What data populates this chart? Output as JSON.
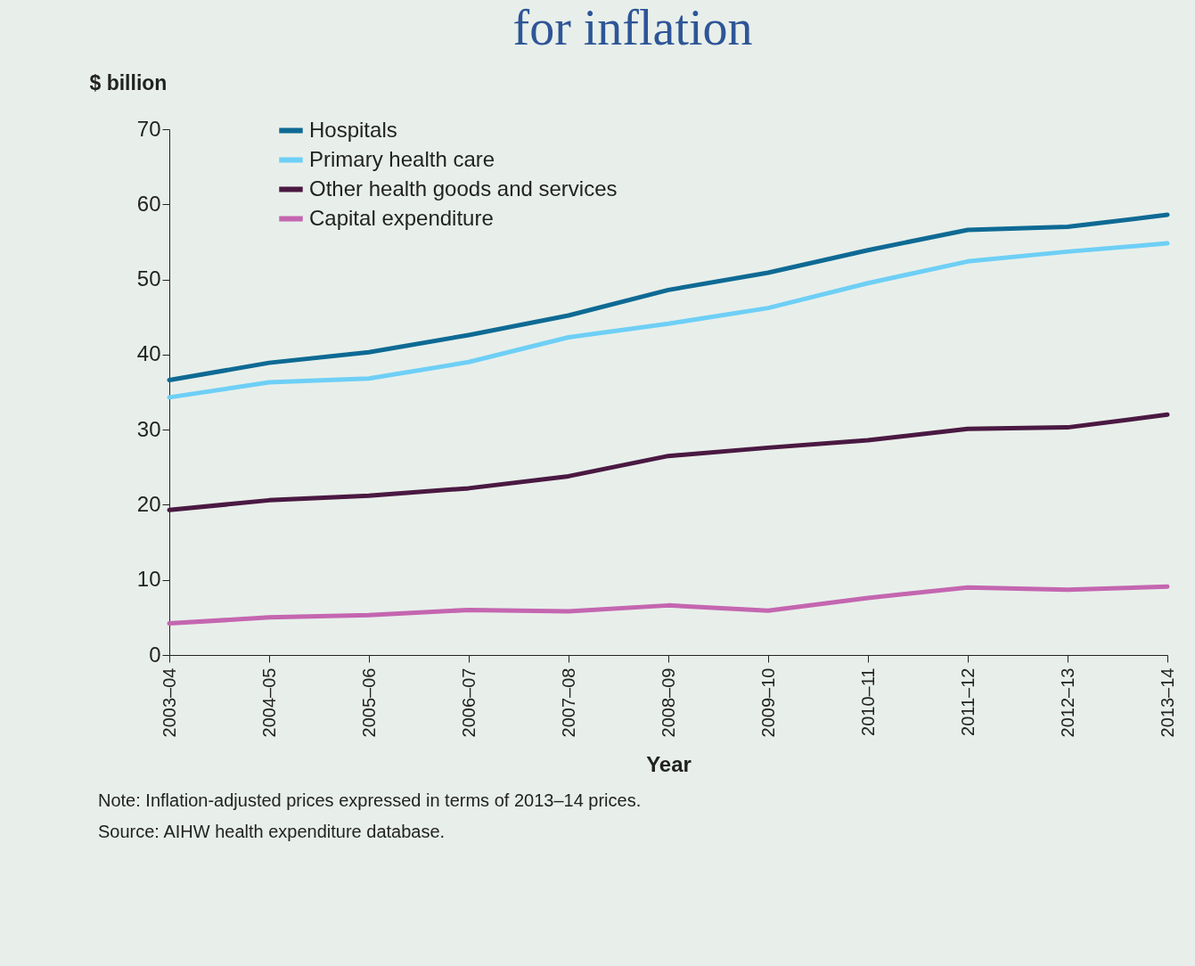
{
  "chart_data": {
    "type": "line",
    "title": "for inflation",
    "ylabel": "$ billion",
    "xlabel": "Year",
    "categories": [
      "2003–04",
      "2004–05",
      "2005–06",
      "2006–07",
      "2007–08",
      "2008–09",
      "2009–10",
      "2010–11",
      "2011–12",
      "2012–13",
      "2013–14"
    ],
    "series": [
      {
        "name": "Hospitals",
        "color": "#0e6a94",
        "values": [
          36.6,
          38.9,
          40.3,
          42.6,
          45.2,
          48.6,
          50.9,
          53.9,
          56.6,
          57.0,
          58.6
        ]
      },
      {
        "name": "Primary health care",
        "color": "#6ecff6",
        "values": [
          34.3,
          36.3,
          36.8,
          39.0,
          42.3,
          44.1,
          46.2,
          49.5,
          52.4,
          53.7,
          54.8
        ]
      },
      {
        "name": "Other health goods and services",
        "color": "#4a1942",
        "values": [
          19.3,
          20.6,
          21.2,
          22.2,
          23.8,
          26.5,
          27.6,
          28.6,
          30.1,
          30.3,
          32.0
        ]
      },
      {
        "name": "Capital expenditure",
        "color": "#c466b0",
        "values": [
          4.2,
          5.0,
          5.3,
          6.0,
          5.8,
          6.6,
          5.9,
          7.6,
          9.0,
          8.7,
          9.1
        ]
      }
    ],
    "ylim": [
      0,
      70
    ],
    "yticks": [
      0,
      10,
      20,
      30,
      40,
      50,
      60,
      70
    ],
    "grid": false,
    "legend": "top left",
    "line_style": "solid",
    "annotations": [
      "Note: Inflation-adjusted prices expressed in terms of 2013–14 prices.",
      "Source: AIHW health expenditure database."
    ]
  }
}
